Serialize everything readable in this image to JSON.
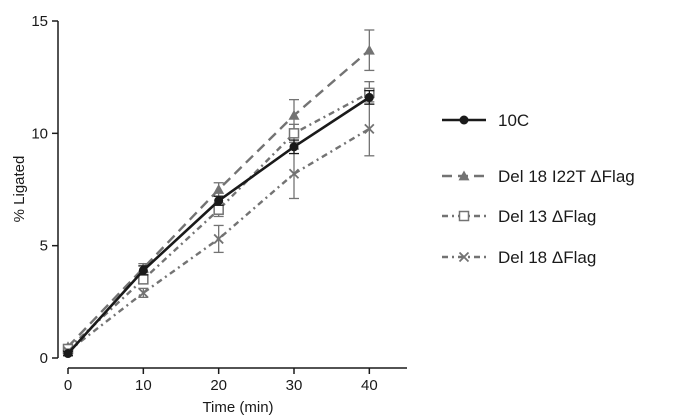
{
  "chart_data": {
    "type": "line",
    "title": "",
    "xlabel": "Time (min)",
    "ylabel": "% Ligated",
    "xlim": [
      0,
      45
    ],
    "ylim": [
      0,
      15
    ],
    "x": [
      0,
      10,
      20,
      30,
      40
    ],
    "xticks": [
      "0",
      "10",
      "20",
      "30",
      "40"
    ],
    "yticks": [
      "0",
      "5",
      "10",
      "15"
    ],
    "grid": false,
    "legend_position": "right",
    "series": [
      {
        "name": "10C",
        "values": [
          0.2,
          3.9,
          7.0,
          9.4,
          11.6
        ],
        "error": [
          0.1,
          0.2,
          0.2,
          0.3,
          0.3
        ],
        "color": "#1a1a1a",
        "line_style": "solid",
        "marker": "circle"
      },
      {
        "name": "Del 18 I22T ΔFlag",
        "values": [
          0.5,
          4.0,
          7.5,
          10.8,
          13.7
        ],
        "error": [
          0.1,
          0.2,
          0.3,
          0.7,
          0.9
        ],
        "color": "#737373",
        "line_style": "dashed",
        "marker": "triangle"
      },
      {
        "name": "Del 13 ΔFlag",
        "values": [
          0.4,
          3.5,
          6.6,
          10.0,
          11.8
        ],
        "error": [
          0.1,
          0.2,
          0.3,
          0.4,
          0.5
        ],
        "color": "#737373",
        "line_style": "dashdot",
        "marker": "open-square"
      },
      {
        "name": "Del 18 ΔFlag",
        "values": [
          0.3,
          2.9,
          5.3,
          8.2,
          10.2
        ],
        "error": [
          0.1,
          0.2,
          0.6,
          1.1,
          1.2
        ],
        "color": "#737373",
        "line_style": "dashdot",
        "marker": "x"
      }
    ]
  }
}
